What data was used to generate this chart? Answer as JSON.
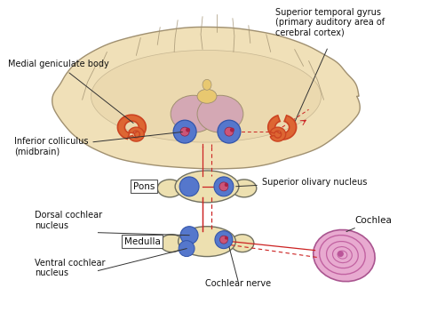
{
  "bg_color": "#ffffff",
  "brain_color": "#f0e0b8",
  "brain_outline": "#a09070",
  "brain_inner_color": "#e8d4a8",
  "thalamus_color": "#d4a0a8",
  "thalamus_top": "#e8c870",
  "brainstem_color": "#ede0b0",
  "nucleus_blue": "#5577cc",
  "nucleus_pink": "#cc5577",
  "nucleus_dot": "#aa2244",
  "cochlea_outer": "#cc77aa",
  "cochlea_inner": "#e8aad0",
  "cochlea_spiral": "#bb5599",
  "medial_geniculate_color": "#cc4422",
  "medial_geniculate_fill": "#dd6633",
  "pathway_color": "#cc2222",
  "outline_color": "#707060",
  "arrow_color": "#333333",
  "label_color": "#111111",
  "label_fs": 7.0,
  "labels": {
    "medial_geniculate": "Medial geniculate body",
    "superior_temporal": "Superior temporal gyrus\n(primary auditory area of\ncerebral cortex)",
    "inferior_colliculus": "Inferior colliculus\n(midbrain)",
    "pons": "Pons",
    "superior_olivary": "Superior olivary nucleus",
    "dorsal_cochlear": "Dorsal cochlear\nnucleus",
    "medulla": "Medulla",
    "ventral_cochlear": "Ventral cochlear\nnucleus",
    "cochlear_nerve": "Cochlear nerve",
    "cochlea": "Cochlea"
  }
}
